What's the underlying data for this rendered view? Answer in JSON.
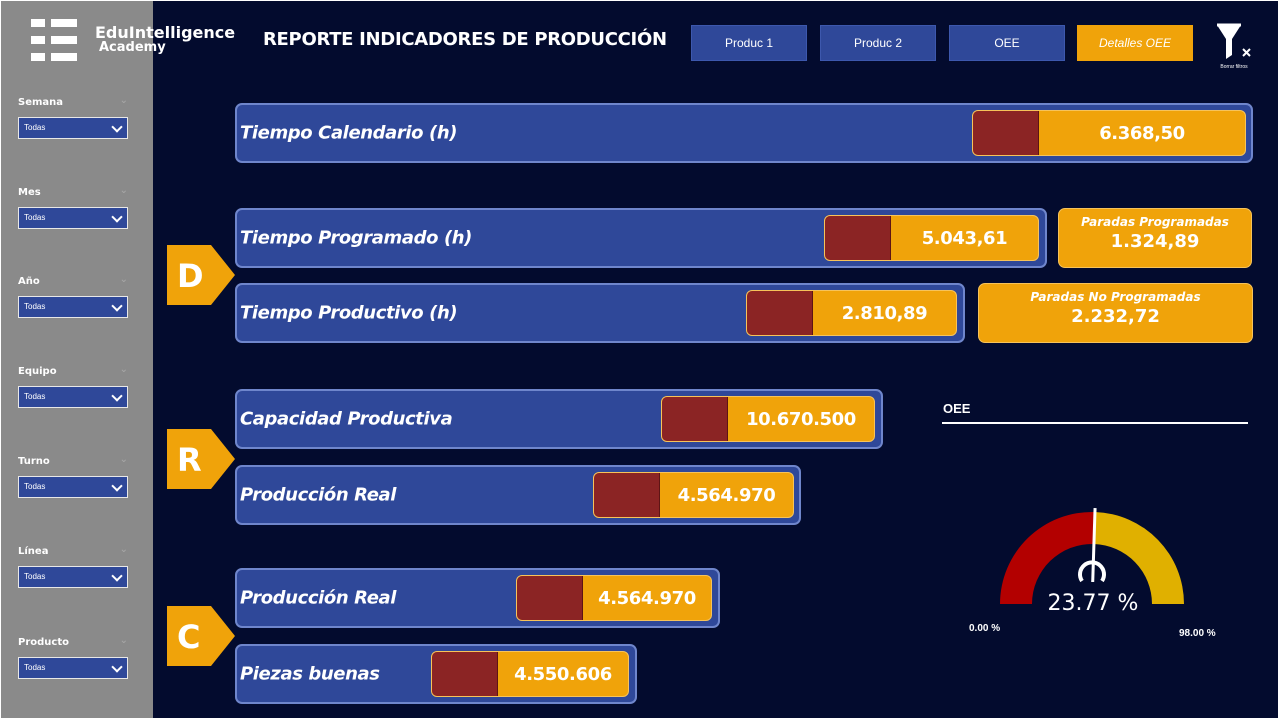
{
  "brand": {
    "name_line1": "EduIntelligence",
    "name_line2": "Academy"
  },
  "header": {
    "title": "REPORTE INDICADORES DE PRODUCCIÓN"
  },
  "nav": [
    {
      "label": "Produc 1",
      "active": false
    },
    {
      "label": "Produc 2",
      "active": false
    },
    {
      "label": "OEE",
      "active": false
    },
    {
      "label": "Detalles OEE",
      "active": true
    }
  ],
  "clear_filters": {
    "label": "Borrar filtros",
    "icon": "filter-clear-icon"
  },
  "filters": [
    {
      "label": "Semana",
      "value": "Todas"
    },
    {
      "label": "Mes",
      "value": "Todas"
    },
    {
      "label": "Año",
      "value": "Todas"
    },
    {
      "label": "Equipo",
      "value": "Todas"
    },
    {
      "label": "Turno",
      "value": "Todas"
    },
    {
      "label": "Línea",
      "value": "Todas"
    },
    {
      "label": "Producto",
      "value": "Todas"
    }
  ],
  "metrics": {
    "tiempo_calendario": {
      "label": "Tiempo Calendario (h)",
      "value": "6.368,50"
    },
    "tiempo_programado": {
      "label": "Tiempo Programado (h)",
      "value": "5.043,61"
    },
    "tiempo_productivo": {
      "label": "Tiempo Productivo (h)",
      "value": "2.810,89"
    },
    "capacidad_productiva": {
      "label": "Capacidad Productiva",
      "value": "10.670.500"
    },
    "produccion_real_r": {
      "label": "Producción Real",
      "value": "4.564.970"
    },
    "produccion_real_c": {
      "label": "Producción Real",
      "value": "4.564.970"
    },
    "piezas_buenas": {
      "label": "Piezas buenas",
      "value": "4.550.606"
    }
  },
  "cards": {
    "paradas_programadas": {
      "label": "Paradas Programadas",
      "value": "1.324,89"
    },
    "paradas_no_programadas": {
      "label": "Paradas No Programadas",
      "value": "2.232,72"
    }
  },
  "markers": {
    "d": "D",
    "r": "R",
    "c": "C"
  },
  "oee": {
    "title": "OEE",
    "value_text": "23.77 %",
    "value": 23.77,
    "min_label": "0.00 %",
    "max_label": "98.00 %",
    "min": 0,
    "max": 98,
    "target": 50,
    "colors": {
      "low": "#b30000",
      "high": "#e0b000",
      "needle": "#ffffff"
    }
  },
  "colors": {
    "background": "#030b2e",
    "bar": "#2f4899",
    "accent": "#f0a30a",
    "red_block": "#8b2424",
    "sidebar": "#8a8a8a"
  }
}
